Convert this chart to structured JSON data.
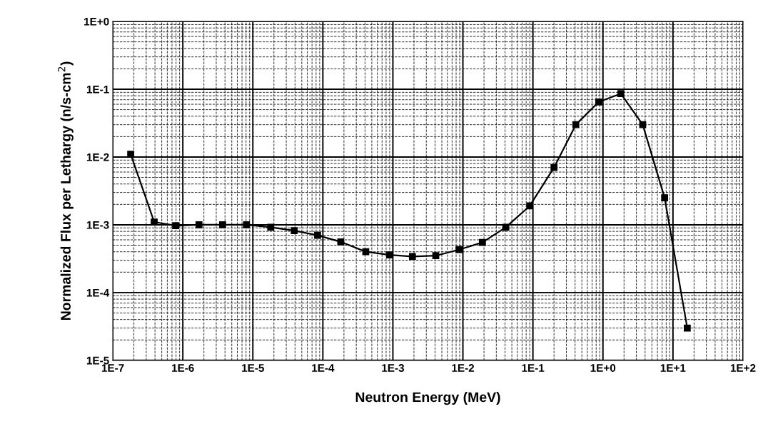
{
  "chart_data": {
    "type": "line",
    "xlabel": "Neutron Energy (MeV)",
    "ylabel": "Normalized Flux per Lethargy (n/s-cm$^{2}$)",
    "x": [
      1.8e-07,
      3.9e-07,
      7.9e-07,
      1.7e-06,
      3.7e-06,
      8.1e-06,
      1.8e-05,
      3.9e-05,
      8.4e-05,
      0.00018,
      0.00041,
      0.0009,
      0.0019,
      0.0041,
      0.0088,
      0.019,
      0.041,
      0.09,
      0.2,
      0.41,
      0.87,
      1.8,
      3.7,
      7.6,
      16
    ],
    "series": [
      {
        "color": "#000000",
        "values": [
          0.011,
          0.0011,
          0.00097,
          0.001,
          0.001,
          0.001,
          0.00092,
          0.00082,
          0.0007,
          0.00056,
          0.0004,
          0.00036,
          0.00034,
          0.00035,
          0.00043,
          0.00055,
          0.00092,
          0.0019,
          0.007,
          0.03,
          0.065,
          0.086,
          0.03,
          0.0025,
          3e-05
        ]
      }
    ],
    "log": "xy",
    "xlim": [
      1e-07,
      100
    ],
    "ylim": [
      1e-05,
      1
    ],
    "xticks": [
      {
        "value": 1e-07,
        "label": "1E-7"
      },
      {
        "value": 1e-06,
        "label": "1E-6"
      },
      {
        "value": 1e-05,
        "label": "1E-5"
      },
      {
        "value": 0.0001,
        "label": "1E-4"
      },
      {
        "value": 0.001,
        "label": "1E-3"
      },
      {
        "value": 0.01,
        "label": "1E-2"
      },
      {
        "value": 0.1,
        "label": "1E-1"
      },
      {
        "value": 1,
        "label": "1E+0"
      },
      {
        "value": 10,
        "label": "1E+1"
      },
      {
        "value": 100,
        "label": "1E+2"
      }
    ],
    "yticks": [
      {
        "value": 1e-05,
        "label": "1E-5"
      },
      {
        "value": 0.0001,
        "label": "1E-4"
      },
      {
        "value": 0.001,
        "label": "1E-3"
      },
      {
        "value": 0.01,
        "label": "1E-2"
      },
      {
        "value": 0.1,
        "label": "1E-1"
      },
      {
        "value": 1,
        "label": "1E+0"
      }
    ],
    "grid": true,
    "marker": "square",
    "line_style": "solid"
  }
}
